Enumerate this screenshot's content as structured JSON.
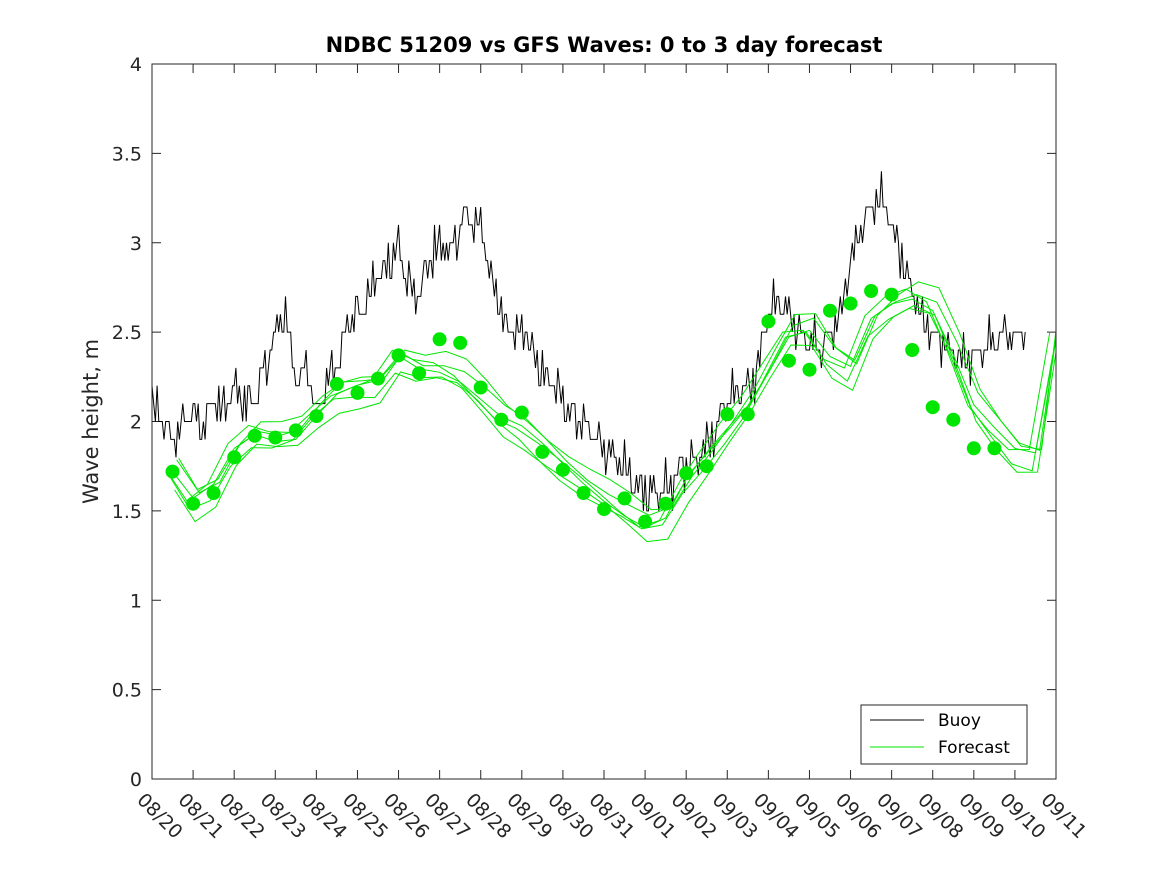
{
  "chart_data": {
    "type": "line",
    "title": "NDBC 51209 vs GFS Waves: 0 to 3 day forecast",
    "xlabel": "",
    "ylabel": "Wave height, m",
    "xlim_days": [
      0,
      22
    ],
    "ylim": [
      0,
      4
    ],
    "yticks": [
      0,
      0.5,
      1,
      1.5,
      2,
      2.5,
      3,
      3.5,
      4
    ],
    "ytick_labels": [
      "0",
      "0.5",
      "1",
      "1.5",
      "2",
      "2.5",
      "3",
      "3.5",
      "4"
    ],
    "xtick_labels": [
      "08/20",
      "08/21",
      "08/22",
      "08/23",
      "08/24",
      "08/25",
      "08/26",
      "08/27",
      "08/28",
      "08/29",
      "08/30",
      "08/31",
      "09/01",
      "09/02",
      "09/03",
      "09/04",
      "09/05",
      "09/06",
      "09/07",
      "09/08",
      "09/09",
      "09/10",
      "09/11"
    ],
    "legend": {
      "position": "bottom-right",
      "entries": [
        {
          "label": "Buoy",
          "color": "#000000"
        },
        {
          "label": "Forecast",
          "color": "#00e600"
        }
      ]
    },
    "series": [
      {
        "name": "Buoy",
        "color": "#000000",
        "x": [
          0,
          0.25,
          0.5,
          0.75,
          1,
          1.25,
          1.5,
          1.75,
          2,
          2.25,
          2.5,
          2.75,
          3,
          3.25,
          3.5,
          3.75,
          4,
          4.25,
          4.5,
          4.75,
          5,
          5.25,
          5.5,
          5.75,
          6,
          6.25,
          6.5,
          6.75,
          7,
          7.25,
          7.5,
          7.75,
          8,
          8.25,
          8.5,
          8.75,
          9,
          9.25,
          9.5,
          9.75,
          10,
          10.25,
          10.5,
          10.75,
          11,
          11.25,
          11.5,
          11.75,
          12,
          12.25,
          12.5,
          12.75,
          13,
          13.25,
          13.5,
          13.75,
          14,
          14.25,
          14.5,
          14.75,
          15,
          15.25,
          15.5,
          15.75,
          16,
          16.25,
          16.5,
          16.75,
          17,
          17.25,
          17.5,
          17.75,
          18,
          18.25,
          18.5,
          18.75,
          19,
          19.25,
          19.5,
          19.75,
          20,
          20.25,
          20.5,
          20.75,
          21,
          21.25
        ],
        "y": [
          2.1,
          2.0,
          1.9,
          2.0,
          2.05,
          2.0,
          2.1,
          2.05,
          2.2,
          2.1,
          2.15,
          2.3,
          2.5,
          2.6,
          2.25,
          2.3,
          2.05,
          2.2,
          2.3,
          2.55,
          2.6,
          2.7,
          2.8,
          2.9,
          3.0,
          2.75,
          2.7,
          2.9,
          3.0,
          2.95,
          3.1,
          3.15,
          3.1,
          2.8,
          2.6,
          2.5,
          2.55,
          2.4,
          2.3,
          2.2,
          2.1,
          2.05,
          2.0,
          1.95,
          1.85,
          1.8,
          1.75,
          1.65,
          1.6,
          1.58,
          1.62,
          1.7,
          1.75,
          1.8,
          1.85,
          1.95,
          2.1,
          2.15,
          2.2,
          2.3,
          2.6,
          2.7,
          2.6,
          2.5,
          2.45,
          2.4,
          2.5,
          2.6,
          2.9,
          3.1,
          3.2,
          3.3,
          3.1,
          2.9,
          2.7,
          2.6,
          2.5,
          2.45,
          2.4,
          2.35,
          2.35,
          2.4,
          2.45,
          2.5,
          2.45,
          2.5
        ]
      },
      {
        "name": "Forecast",
        "color": "#00e600",
        "x": [
          0.5,
          1,
          1.5,
          2,
          2.5,
          3,
          3.5,
          4,
          4.5,
          5,
          5.5,
          6,
          6.5,
          7,
          7.5,
          8,
          8.5,
          9,
          9.5,
          10,
          10.5,
          11,
          11.5,
          12,
          12.5,
          13,
          13.5,
          14,
          14.5,
          15,
          15.5,
          16,
          16.5,
          17,
          17.5,
          18,
          18.5,
          19,
          19.5,
          20,
          20.5,
          21,
          21.5,
          22
        ],
        "y": [
          1.72,
          1.55,
          1.62,
          1.83,
          1.93,
          1.91,
          1.93,
          2.05,
          2.15,
          2.18,
          2.2,
          2.35,
          2.3,
          2.3,
          2.25,
          2.14,
          2.02,
          1.95,
          1.85,
          1.75,
          1.66,
          1.58,
          1.5,
          1.42,
          1.45,
          1.65,
          1.8,
          1.95,
          2.1,
          2.3,
          2.5,
          2.52,
          2.35,
          2.28,
          2.55,
          2.65,
          2.7,
          2.65,
          2.4,
          2.1,
          1.95,
          1.82,
          1.8,
          2.45
        ]
      },
      {
        "name": "Forecast markers",
        "color": "#00e600",
        "x": [
          0.5,
          1,
          1.5,
          2,
          2.5,
          3,
          3.5,
          4,
          4.5,
          5,
          5.5,
          6,
          6.5,
          7,
          7.5,
          8,
          8.5,
          9,
          9.5,
          10,
          10.5,
          11,
          11.5,
          12,
          12.5,
          13,
          13.5,
          14,
          14.5,
          15,
          15.5,
          16,
          16.5,
          17,
          17.5,
          18,
          18.5,
          19,
          19.5,
          20,
          20.5
        ],
        "y": [
          1.72,
          1.54,
          1.6,
          1.8,
          1.92,
          1.91,
          1.95,
          2.03,
          2.21,
          2.16,
          2.24,
          2.37,
          2.27,
          2.46,
          2.44,
          2.19,
          2.01,
          2.05,
          1.83,
          1.73,
          1.6,
          1.51,
          1.57,
          1.44,
          1.54,
          1.71,
          1.75,
          2.04,
          2.04,
          2.56,
          2.34,
          2.29,
          2.62,
          2.66,
          2.73,
          2.71,
          2.4,
          2.08,
          2.01,
          1.85,
          1.85
        ]
      }
    ]
  }
}
